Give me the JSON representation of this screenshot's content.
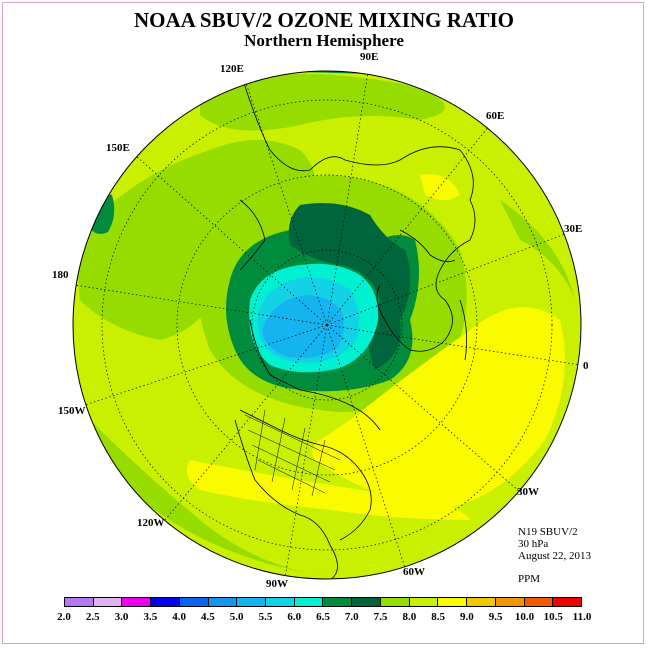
{
  "title": "NOAA SBUV/2 OZONE MIXING RATIO",
  "subtitle": "Northern Hemisphere",
  "longitude_labels": {
    "e90": "90E",
    "e60": "60E",
    "e30": "30E",
    "zero": "0",
    "w30": "30W",
    "w60": "60W",
    "w90": "90W",
    "w120": "120W",
    "w150": "150W",
    "d180": "180",
    "e150": "150E",
    "e120": "120E"
  },
  "info": {
    "instrument": "N19 SBUV/2",
    "pressure": "30 hPa",
    "date": "August 22, 2013",
    "units": "PPM"
  },
  "colorbar": {
    "ticks": [
      "2.0",
      "2.5",
      "3.0",
      "3.5",
      "4.0",
      "4.5",
      "5.0",
      "5.5",
      "6.0",
      "6.5",
      "7.0",
      "7.5",
      "8.0",
      "8.5",
      "9.0",
      "9.5",
      "10.0",
      "10.5",
      "11.0"
    ],
    "colors": [
      "#b478f0",
      "#dcb4f0",
      "#f000f0",
      "#0000f0",
      "#0a64f0",
      "#1496f0",
      "#14b4f0",
      "#14d2e6",
      "#00f0d2",
      "#008c3c",
      "#00643c",
      "#96dc00",
      "#c8f000",
      "#fafa00",
      "#f0c800",
      "#f09600",
      "#f05a00",
      "#f00000",
      "#96503c"
    ]
  }
}
